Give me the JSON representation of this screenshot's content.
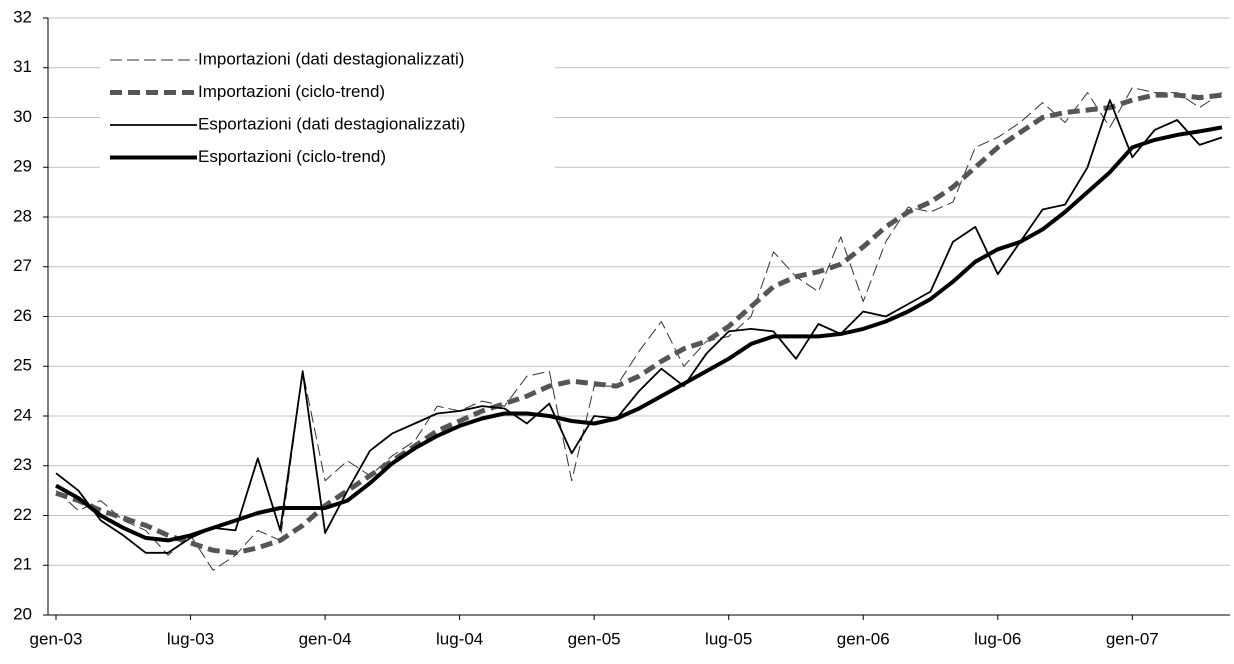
{
  "chart_data": {
    "type": "line",
    "categories": [
      "gen-03",
      null,
      null,
      null,
      null,
      null,
      "lug-03",
      null,
      null,
      null,
      null,
      null,
      "gen-04",
      null,
      null,
      null,
      null,
      null,
      "lug-04",
      null,
      null,
      null,
      null,
      null,
      "gen-05",
      null,
      null,
      null,
      null,
      null,
      "lug-05",
      null,
      null,
      null,
      null,
      null,
      "gen-06",
      null,
      null,
      null,
      null,
      null,
      "lug-06",
      null,
      null,
      null,
      null,
      null,
      "gen-07",
      null,
      null,
      null,
      null
    ],
    "series": [
      {
        "name": "Importazioni (dati destagionalizzati)",
        "color": "#333333",
        "values": [
          22.5,
          22.1,
          22.3,
          21.9,
          21.7,
          21.2,
          21.6,
          20.9,
          21.2,
          21.7,
          21.5,
          24.9,
          22.7,
          23.1,
          22.8,
          23.2,
          23.5,
          24.2,
          24.1,
          24.3,
          24.2,
          24.8,
          24.9,
          22.7,
          24.6,
          24.6,
          25.3,
          25.9,
          25.0,
          25.5,
          25.6,
          26.0,
          27.3,
          26.8,
          26.5,
          27.6,
          26.3,
          27.5,
          28.2,
          28.1,
          28.3,
          29.4,
          29.6,
          29.9,
          30.3,
          29.9,
          30.5,
          29.8,
          30.6,
          30.5,
          30.5,
          30.2,
          30.5
        ]
      },
      {
        "name": "Importazioni (ciclo-trend)",
        "color": "#555555",
        "values": [
          22.45,
          22.3,
          22.1,
          21.95,
          21.8,
          21.6,
          21.45,
          21.3,
          21.25,
          21.35,
          21.5,
          21.8,
          22.2,
          22.5,
          22.8,
          23.1,
          23.4,
          23.7,
          23.9,
          24.1,
          24.25,
          24.4,
          24.6,
          24.7,
          24.65,
          24.6,
          24.8,
          25.1,
          25.35,
          25.5,
          25.8,
          26.2,
          26.6,
          26.8,
          26.9,
          27.05,
          27.4,
          27.8,
          28.1,
          28.3,
          28.6,
          29.0,
          29.4,
          29.7,
          30.0,
          30.1,
          30.15,
          30.2,
          30.35,
          30.45,
          30.45,
          30.4,
          30.45
        ]
      },
      {
        "name": "Esportazioni (dati destagionalizzati)",
        "color": "#000000",
        "values": [
          22.85,
          22.5,
          21.9,
          21.6,
          21.25,
          21.25,
          21.55,
          21.75,
          21.7,
          23.15,
          21.7,
          24.9,
          21.65,
          22.5,
          23.3,
          23.65,
          23.85,
          24.05,
          24.1,
          24.2,
          24.15,
          23.85,
          24.25,
          23.25,
          24.0,
          23.95,
          24.5,
          24.95,
          24.6,
          25.25,
          25.7,
          25.75,
          25.7,
          25.15,
          25.85,
          25.65,
          26.1,
          26.0,
          26.25,
          26.5,
          27.5,
          27.8,
          26.85,
          27.5,
          28.15,
          28.25,
          29.0,
          30.35,
          29.2,
          29.75,
          29.95,
          29.45,
          29.6
        ]
      },
      {
        "name": "Esportazioni (ciclo-trend)",
        "color": "#000000",
        "values": [
          22.6,
          22.35,
          22.0,
          21.75,
          21.55,
          21.5,
          21.6,
          21.75,
          21.9,
          22.05,
          22.15,
          22.15,
          22.15,
          22.3,
          22.65,
          23.05,
          23.35,
          23.6,
          23.8,
          23.95,
          24.05,
          24.05,
          24.0,
          23.9,
          23.85,
          23.95,
          24.15,
          24.4,
          24.65,
          24.9,
          25.15,
          25.45,
          25.6,
          25.6,
          25.6,
          25.65,
          25.75,
          25.9,
          26.1,
          26.35,
          26.7,
          27.1,
          27.35,
          27.5,
          27.75,
          28.1,
          28.5,
          28.9,
          29.4,
          29.55,
          29.65,
          29.72,
          29.8
        ]
      }
    ],
    "ylim": [
      20,
      32
    ],
    "yticks": [
      20,
      21,
      22,
      23,
      24,
      25,
      26,
      27,
      28,
      29,
      30,
      31,
      32
    ],
    "grid": true,
    "legend": "upper left"
  }
}
